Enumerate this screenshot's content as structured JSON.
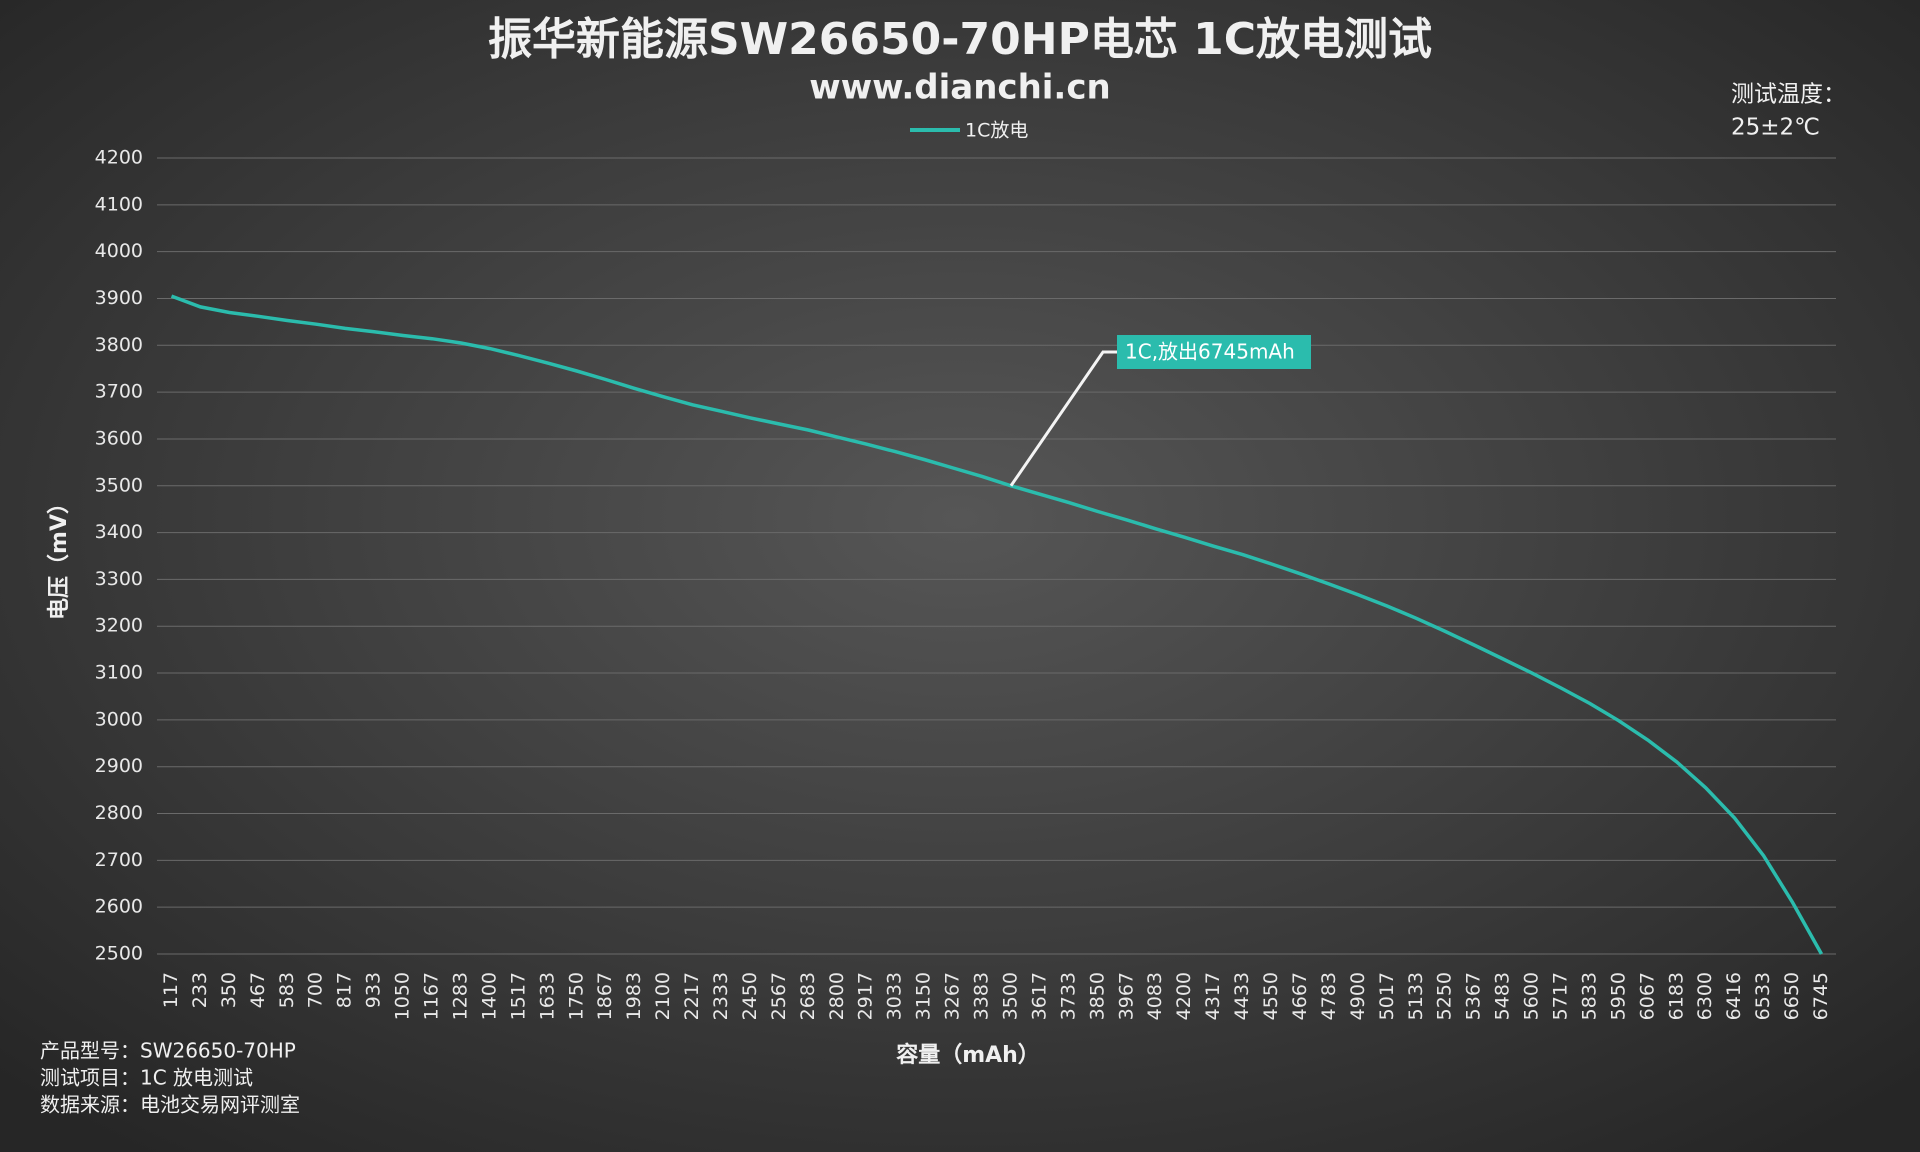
{
  "chart_data": {
    "type": "line",
    "title": "振华新能源SW26650-70HP电芯 1C放电测试",
    "subtitle": "www.dianchi.cn",
    "note": [
      "测试温度：",
      "25±2℃"
    ],
    "y_label": "电压（mV）",
    "x_label": "容量（mAh）",
    "footer": [
      "产品型号：SW26650-70HP",
      "测试项目：1C 放电测试",
      "数据来源：电池交易网评测室"
    ],
    "annotation": {
      "text": "1C,放出6745mAh",
      "index": 29
    },
    "categories": [
      117,
      233,
      350,
      467,
      583,
      700,
      817,
      933,
      1050,
      1167,
      1283,
      1400,
      1517,
      1633,
      1750,
      1867,
      1983,
      2100,
      2217,
      2333,
      2450,
      2567,
      2683,
      2800,
      2917,
      3033,
      3150,
      3267,
      3383,
      3500,
      3617,
      3733,
      3850,
      3967,
      4083,
      4200,
      4317,
      4433,
      4550,
      4667,
      4783,
      4900,
      5017,
      5133,
      5250,
      5367,
      5483,
      5600,
      5717,
      5833,
      5950,
      6067,
      6183,
      6300,
      6416,
      6533,
      6650,
      6745
    ],
    "series": [
      {
        "name": "1C放电",
        "color": "#2bbcad",
        "values": [
          3905,
          3882,
          3870,
          3862,
          3853,
          3845,
          3836,
          3829,
          3821,
          3814,
          3805,
          3793,
          3778,
          3762,
          3745,
          3727,
          3708,
          3690,
          3673,
          3659,
          3645,
          3632,
          3619,
          3604,
          3589,
          3573,
          3556,
          3538,
          3520,
          3500,
          3482,
          3464,
          3445,
          3427,
          3408,
          3390,
          3371,
          3353,
          3333,
          3312,
          3290,
          3267,
          3243,
          3217,
          3189,
          3160,
          3130,
          3100,
          3068,
          3035,
          2998,
          2957,
          2910,
          2855,
          2790,
          2710,
          2610,
          2500
        ]
      }
    ],
    "ylim": [
      2500,
      4200
    ],
    "yticks": [
      2500,
      2600,
      2700,
      2800,
      2900,
      3000,
      3100,
      3200,
      3300,
      3400,
      3500,
      3600,
      3700,
      3800,
      3900,
      4000,
      4100,
      4200
    ],
    "grid": true
  }
}
